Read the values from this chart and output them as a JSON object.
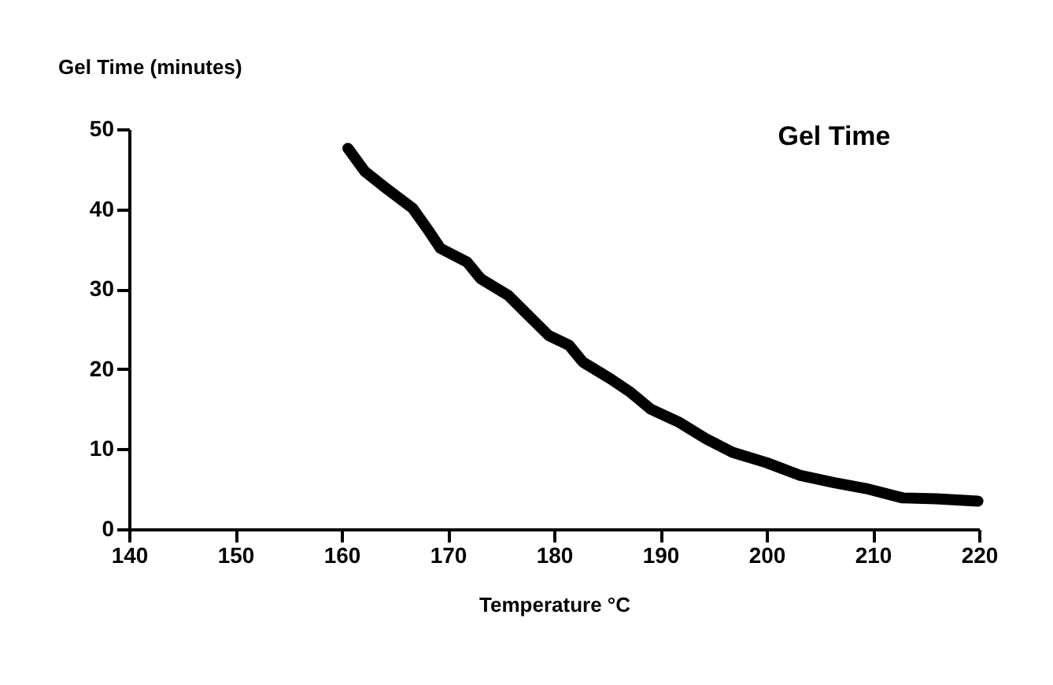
{
  "chart_data": {
    "type": "line",
    "title": "Gel Time",
    "xlabel": "Temperature °C",
    "ylabel": "Gel Time (minutes)",
    "x": [
      160.6,
      162.2,
      164.2,
      166.7,
      168.3,
      169.3,
      171.8,
      173.1,
      175.7,
      177.6,
      179.5,
      181.4,
      182.7,
      185.3,
      187.2,
      189.1,
      191.7,
      194.3,
      196.8,
      200.0,
      203.2,
      206.4,
      209.6,
      212.8,
      216.0,
      219.9
    ],
    "series": [
      {
        "color": "#000000",
        "values": [
          47.6,
          44.7,
          42.6,
          40.1,
          37.1,
          35.1,
          33.4,
          31.3,
          29.2,
          26.7,
          24.2,
          23.0,
          20.9,
          18.8,
          17.1,
          15.0,
          13.4,
          11.3,
          9.6,
          8.3,
          6.7,
          5.8,
          5.0,
          3.9,
          3.8,
          3.5
        ]
      }
    ],
    "xlim": [
      140,
      220
    ],
    "xticks": [
      140,
      150,
      160,
      170,
      180,
      190,
      200,
      210,
      220
    ],
    "ylim": [
      0,
      50
    ],
    "yticks": [
      0,
      10,
      20,
      30,
      40,
      50
    ],
    "grid": false
  }
}
